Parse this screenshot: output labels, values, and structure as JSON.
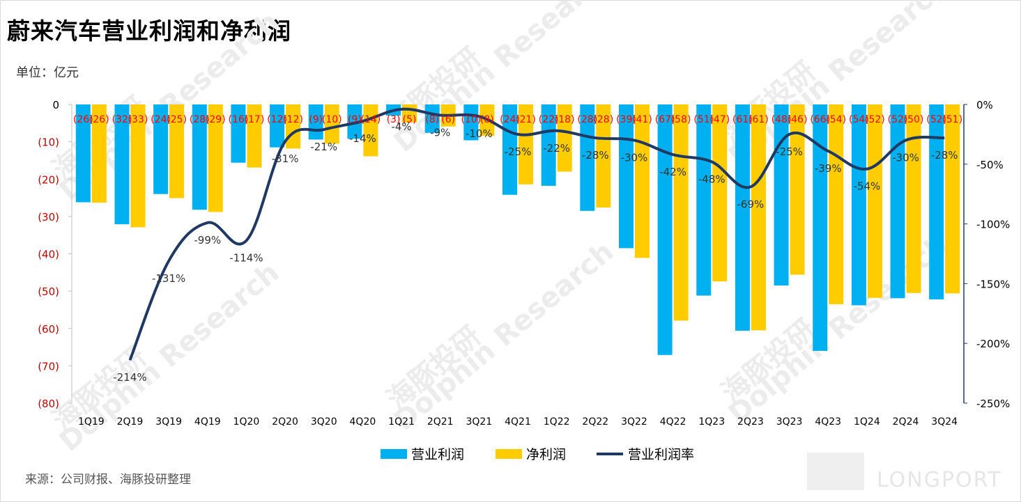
{
  "title": "蔚来汽车营业利润和净利润",
  "unit_label": "单位：亿元",
  "source": "来源：公司财报、海豚投研整理",
  "watermark": {
    "cn": "海豚投研",
    "en": "Dolphin Research",
    "brand": "LONGPORT"
  },
  "colors": {
    "operating_profit": "#00b0f0",
    "net_profit": "#ffcc00",
    "margin_line": "#1f3864",
    "left_axis_text": "#c00000",
    "bar_label": "#ff0000"
  },
  "chart_data": {
    "type": "bar",
    "categories": [
      "1Q19",
      "2Q19",
      "3Q19",
      "4Q19",
      "1Q20",
      "2Q20",
      "3Q20",
      "4Q20",
      "1Q21",
      "2Q21",
      "3Q21",
      "4Q21",
      "1Q22",
      "2Q22",
      "3Q22",
      "4Q22",
      "1Q23",
      "2Q23",
      "3Q23",
      "4Q23",
      "1Q24",
      "2Q24",
      "3Q24"
    ],
    "series": [
      {
        "name": "营业利润",
        "type": "bar",
        "axis": "left",
        "values": [
          -26.2,
          -32.1,
          -24.0,
          -28.2,
          -15.6,
          -11.5,
          -9.4,
          -9.2,
          -3.0,
          -7.6,
          -9.6,
          -24.2,
          -21.8,
          -28.5,
          -38.5,
          -67.1,
          -51.2,
          -60.6,
          -48.5,
          -66.0,
          -53.8,
          -51.9,
          -52.2
        ],
        "labels": [
          "(26)",
          "(32)",
          "(24)",
          "(28)",
          "(16)",
          "(12)",
          "(9)",
          "(9)",
          "(3)",
          "(8)",
          "(10)",
          "(24)",
          "(22)",
          "(28)",
          "(39)",
          "(67)",
          "(51)",
          "(61)",
          "(48)",
          "(66)",
          "(54)",
          "(52)",
          "(52)"
        ]
      },
      {
        "name": "净利润",
        "type": "bar",
        "axis": "left",
        "values": [
          -26.3,
          -32.9,
          -25.1,
          -28.8,
          -16.9,
          -11.8,
          -10.5,
          -13.9,
          -4.8,
          -5.9,
          -8.4,
          -21.4,
          -18.0,
          -27.6,
          -41.1,
          -57.9,
          -47.4,
          -60.5,
          -45.6,
          -53.5,
          -51.8,
          -50.5,
          -50.6
        ],
        "labels": [
          "(26)",
          "(33)",
          "(25)",
          "(29)",
          "(17)",
          "(12)",
          "(10)",
          "(14)",
          "(5)",
          "(6)",
          "(8)",
          "(21)",
          "(18)",
          "(28)",
          "(41)",
          "(58)",
          "(47)",
          "(61)",
          "(46)",
          "(54)",
          "(52)",
          "(50)",
          "(51)"
        ]
      },
      {
        "name": "营业利润率",
        "type": "line",
        "axis": "right",
        "values": [
          null,
          -214,
          -131,
          -99,
          -114,
          -31,
          -21,
          -14,
          -4,
          -9,
          -10,
          -25,
          -22,
          -28,
          -30,
          -42,
          -48,
          -69,
          -25,
          -39,
          -54,
          -30,
          -28
        ],
        "labels": [
          "",
          "-214%",
          "-131%",
          "-99%",
          "-114%",
          "-31%",
          "-21%",
          "-14%",
          "-4%",
          "-9%",
          "-10%",
          "-25%",
          "-22%",
          "-28%",
          "-30%",
          "-42%",
          "-48%",
          "-69%",
          "-25%",
          "-39%",
          "-54%",
          "-30%",
          "-28%"
        ]
      }
    ],
    "left_axis": {
      "min": -80,
      "max": 0,
      "step": 10,
      "ticks": [
        "0",
        "(10)",
        "(20)",
        "(30)",
        "(40)",
        "(50)",
        "(60)",
        "(70)",
        "(80)"
      ]
    },
    "right_axis": {
      "min": -250,
      "max": 0,
      "step": 50,
      "ticks": [
        "0%",
        "-50%",
        "-100%",
        "-150%",
        "-200%",
        "-250%"
      ]
    },
    "legend": {
      "position": "bottom",
      "items": [
        "营业利润",
        "净利润",
        "营业利润率"
      ]
    },
    "grid": false
  }
}
